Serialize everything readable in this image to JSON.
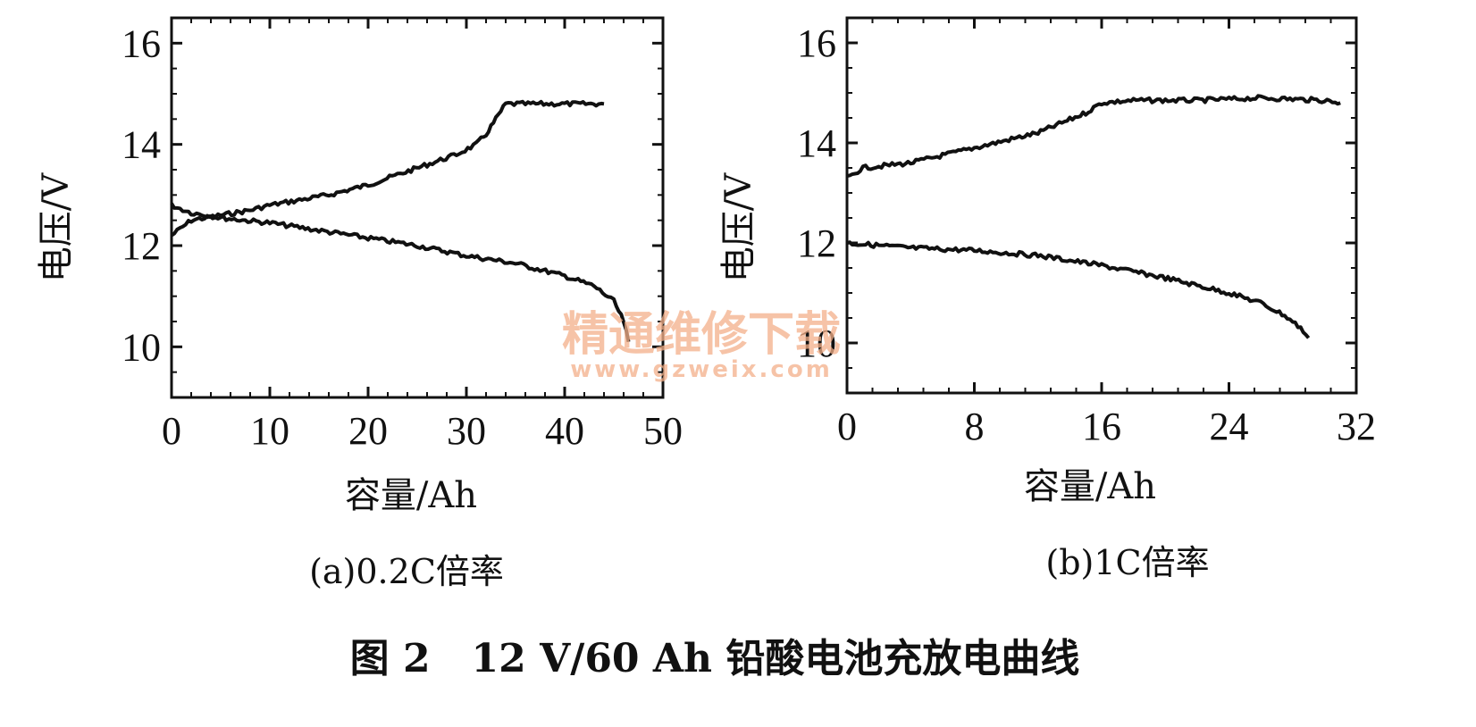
{
  "figure_caption": "图 2   12 V/60 Ah 铅酸电池充放电曲线",
  "watermark": {
    "line1": "精通维修下载",
    "line2": "www.gzweix.com"
  },
  "colors": {
    "ink": "#111111",
    "watermark": "#f4b08a"
  },
  "chart_data": [
    {
      "type": "line",
      "subtitle": "(a)0.2C倍率",
      "xlabel": "容量/Ah",
      "ylabel": "电压/V",
      "xlim": [
        0,
        50
      ],
      "ylim": [
        9.0,
        16.5
      ],
      "x_ticks": [
        0,
        10,
        20,
        30,
        40,
        50
      ],
      "y_ticks": [
        10,
        12,
        14,
        16
      ],
      "grid": false,
      "series": [
        {
          "points": [
            [
              0,
              12.2
            ],
            [
              2,
              12.5
            ],
            [
              5,
              12.6
            ],
            [
              8,
              12.7
            ],
            [
              10,
              12.8
            ],
            [
              13,
              12.9
            ],
            [
              16,
              13.0
            ],
            [
              20,
              13.2
            ],
            [
              23,
              13.4
            ],
            [
              26,
              13.6
            ],
            [
              29,
              13.8
            ],
            [
              31,
              14.0
            ],
            [
              32,
              14.2
            ],
            [
              33,
              14.5
            ],
            [
              34,
              14.8
            ],
            [
              36,
              14.8
            ],
            [
              40,
              14.8
            ],
            [
              44,
              14.8
            ]
          ]
        },
        {
          "points": [
            [
              0,
              12.8
            ],
            [
              2,
              12.65
            ],
            [
              5,
              12.55
            ],
            [
              10,
              12.45
            ],
            [
              15,
              12.3
            ],
            [
              20,
              12.15
            ],
            [
              25,
              12.0
            ],
            [
              30,
              11.8
            ],
            [
              35,
              11.65
            ],
            [
              40,
              11.4
            ],
            [
              43,
              11.2
            ],
            [
              45,
              10.9
            ],
            [
              46,
              10.5
            ],
            [
              46.5,
              10.1
            ]
          ]
        }
      ]
    },
    {
      "type": "line",
      "subtitle": "(b)1C倍率",
      "xlabel": "容量/Ah",
      "ylabel": "电压/V",
      "xlim": [
        0,
        32
      ],
      "ylim": [
        9.0,
        16.5
      ],
      "x_ticks": [
        0,
        8,
        16,
        24,
        32
      ],
      "y_ticks": [
        10,
        12,
        14,
        16
      ],
      "grid": false,
      "series": [
        {
          "points": [
            [
              0,
              13.3
            ],
            [
              1,
              13.5
            ],
            [
              4,
              13.6
            ],
            [
              8,
              13.9
            ],
            [
              12,
              14.2
            ],
            [
              15,
              14.6
            ],
            [
              16,
              14.8
            ],
            [
              18,
              14.85
            ],
            [
              22,
              14.85
            ],
            [
              26,
              14.9
            ],
            [
              30,
              14.85
            ],
            [
              31,
              14.8
            ]
          ]
        },
        {
          "points": [
            [
              0,
              12.0
            ],
            [
              4,
              11.9
            ],
            [
              8,
              11.85
            ],
            [
              12,
              11.75
            ],
            [
              16,
              11.55
            ],
            [
              20,
              11.3
            ],
            [
              24,
              11.0
            ],
            [
              26,
              10.8
            ],
            [
              27.5,
              10.55
            ],
            [
              28.5,
              10.3
            ],
            [
              29,
              10.1
            ]
          ]
        }
      ]
    }
  ]
}
